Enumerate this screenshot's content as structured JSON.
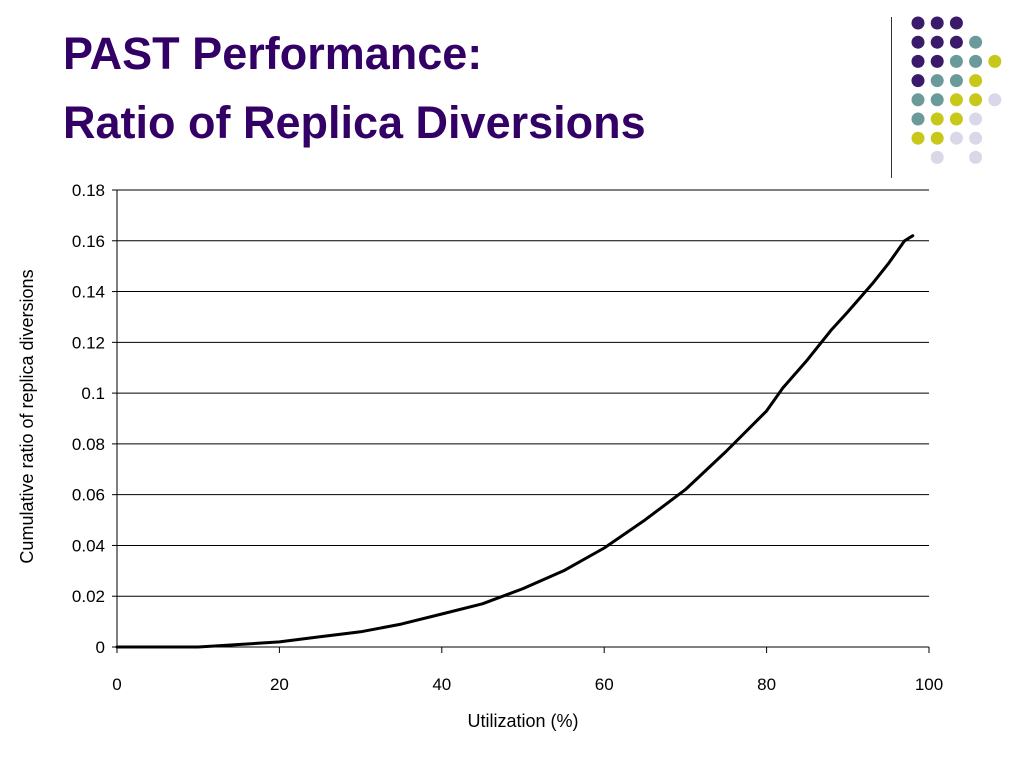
{
  "title": {
    "line1": "PAST Performance:",
    "line2": "Ratio of Replica Diversions"
  },
  "colors": {
    "title": "#330066",
    "dot_purple": "#3a1a6a",
    "dot_teal": "#6b9a9a",
    "dot_yellow": "#c8c81a",
    "dot_lavender": "#d8d8e8"
  },
  "decoration": {
    "dot_rows": [
      [
        "purple",
        "purple",
        "purple",
        "",
        ""
      ],
      [
        "purple",
        "purple",
        "purple",
        "teal",
        ""
      ],
      [
        "purple",
        "purple",
        "teal",
        "teal",
        "yellow"
      ],
      [
        "purple",
        "teal",
        "teal",
        "yellow",
        ""
      ],
      [
        "teal",
        "teal",
        "yellow",
        "yellow",
        "lavender"
      ],
      [
        "teal",
        "yellow",
        "yellow",
        "lavender",
        ""
      ],
      [
        "yellow",
        "yellow",
        "lavender",
        "lavender",
        ""
      ],
      [
        "",
        "lavender",
        "",
        "lavender",
        ""
      ]
    ]
  },
  "chart_data": {
    "type": "line",
    "xlabel": "Utilization (%)",
    "ylabel": "Cumulative ratio of replica diversions",
    "xlim": [
      0,
      100
    ],
    "ylim": [
      0,
      0.18
    ],
    "xticks": [
      "0",
      "20",
      "40",
      "60",
      "80",
      "100"
    ],
    "yticks": [
      "0",
      "0.02",
      "0.04",
      "0.06",
      "0.08",
      "0.1",
      "0.12",
      "0.14",
      "0.16",
      "0.18"
    ],
    "grid": "horizontal",
    "series": [
      {
        "color": "#000000",
        "x": [
          0,
          5,
          10,
          15,
          20,
          25,
          30,
          35,
          40,
          45,
          50,
          55,
          60,
          65,
          70,
          75,
          80,
          82,
          85,
          88,
          90,
          93,
          95,
          97,
          98
        ],
        "y": [
          0,
          0,
          0,
          0.001,
          0.002,
          0.004,
          0.006,
          0.009,
          0.013,
          0.017,
          0.023,
          0.03,
          0.039,
          0.05,
          0.062,
          0.077,
          0.093,
          0.102,
          0.113,
          0.125,
          0.132,
          0.143,
          0.151,
          0.16,
          0.162
        ]
      }
    ]
  }
}
